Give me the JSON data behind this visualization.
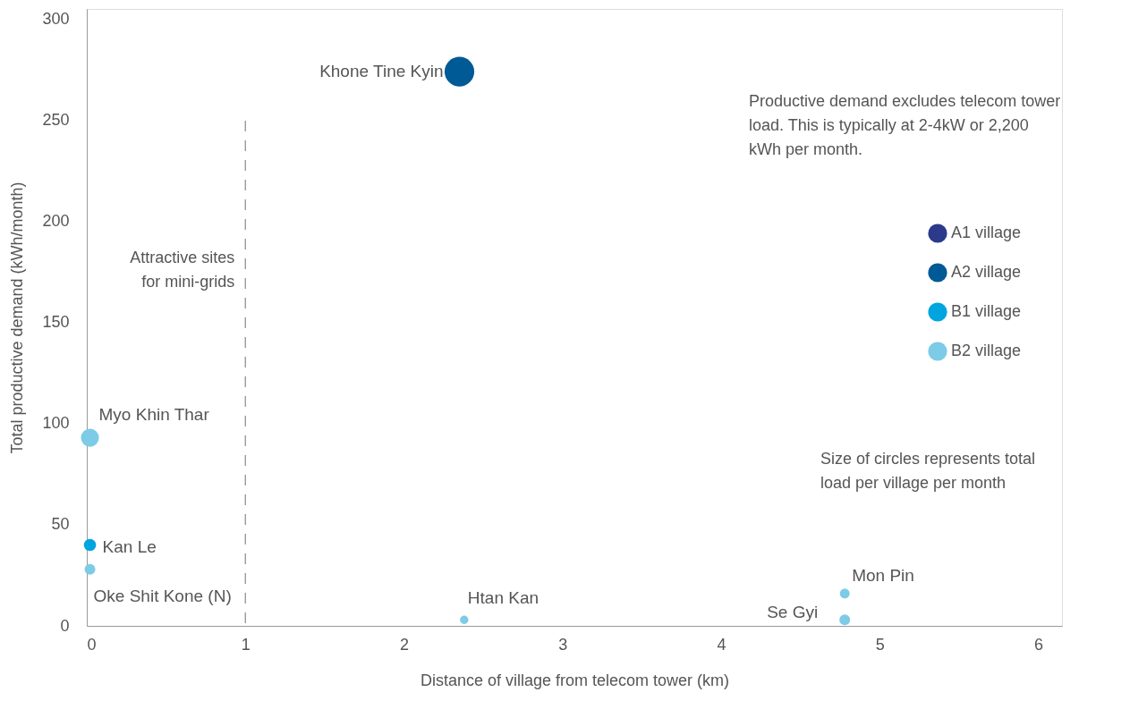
{
  "chart_data": {
    "type": "bubble",
    "xlabel": "Distance of village from telecom tower (km)",
    "ylabel": "Total productive demand (kWh/month)",
    "xlim": [
      0,
      6.15
    ],
    "xticks": [
      0,
      1,
      2,
      3,
      4,
      5,
      6
    ],
    "ylim": [
      0,
      305
    ],
    "yticks": [
      0,
      50,
      100,
      150,
      200,
      250,
      300
    ],
    "series": [
      {
        "name": "A1 village",
        "color": "#2b3a8a"
      },
      {
        "name": "A2 village",
        "color": "#005a96",
        "x": [
          2.35
        ],
        "values": [
          274
        ],
        "sizes": [
          1
        ]
      },
      {
        "name": "B1 village",
        "color": "#00a5e0",
        "x": [
          0.02
        ],
        "values": [
          40
        ],
        "sizes": [
          0.17
        ]
      },
      {
        "name": "B2 village",
        "color": "#7dcbe6",
        "x": [
          0.02,
          0.02,
          2.38,
          4.78,
          4.78
        ],
        "values": [
          93,
          28,
          3,
          16,
          3
        ],
        "sizes": [
          0.37,
          0.13,
          0.08,
          0.11,
          0.13
        ]
      }
    ],
    "annotations": [
      {
        "text": "Khone Tine Kyin",
        "x": 2.35,
        "y": 274
      },
      {
        "text": "Myo Khin Thar",
        "x": 0.02,
        "y": 93
      },
      {
        "text": "Kan Le",
        "x": 0.02,
        "y": 40
      },
      {
        "text": "Oke Shit Kone (N)",
        "x": 0.02,
        "y": 28
      },
      {
        "text": "Htan Kan",
        "x": 2.38,
        "y": 3
      },
      {
        "text": "Mon Pin",
        "x": 4.78,
        "y": 16
      },
      {
        "text": "Se Gyi",
        "x": 4.78,
        "y": 3
      },
      "Productive demand excludes telecom tower load. This is typically at 2-4kW or 2,200 kWh per month.",
      "Size of circles represents total load per village per month"
    ],
    "ref_lines": [
      {
        "axis": "x",
        "value": 1,
        "label": "Attractive sites for mini-grids",
        "line_style": "dashed",
        "color": "#888888"
      }
    ],
    "grid": false,
    "legend": "right",
    "marker": "circle"
  }
}
